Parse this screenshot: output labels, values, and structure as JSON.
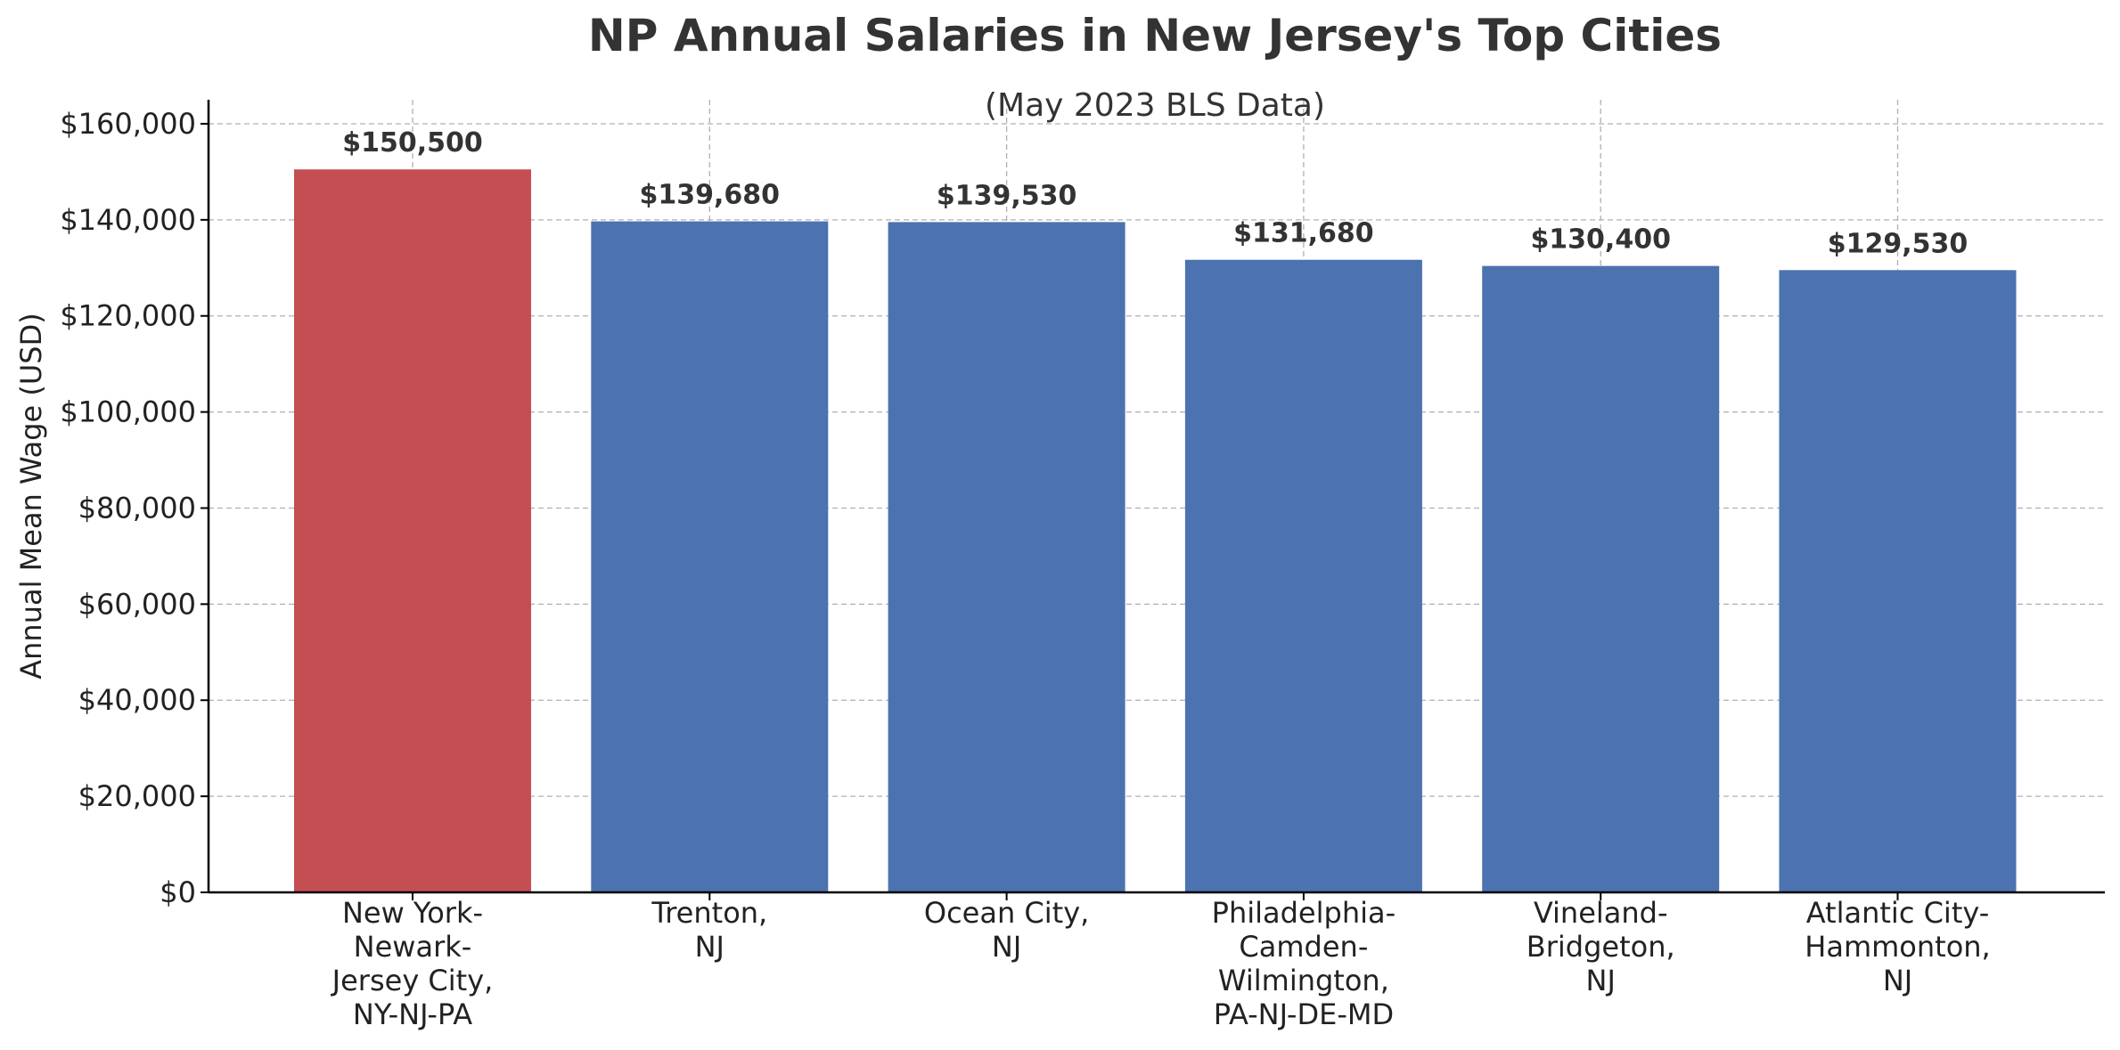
{
  "chart_data": {
    "type": "bar",
    "title": "NP Annual Salaries in New Jersey's Top Cities",
    "subtitle": "(May 2023 BLS Data)",
    "xlabel": "",
    "ylabel": "Annual Mean Wage (USD)",
    "ylim": [
      0,
      165000
    ],
    "yticks": [
      0,
      20000,
      40000,
      60000,
      80000,
      100000,
      120000,
      140000,
      160000
    ],
    "ytick_labels": [
      "$0",
      "$20,000",
      "$40,000",
      "$60,000",
      "$80,000",
      "$100,000",
      "$120,000",
      "$140,000",
      "$160,000"
    ],
    "grid": true,
    "categories": [
      "New York-Newark-Jersey City, NY-NJ-PA",
      "Trenton, NJ",
      "Ocean City, NJ",
      "Philadelphia-Camden-Wilmington, PA-NJ-DE-MD",
      "Vineland-Bridgeton, NJ",
      "Atlantic City-Hammonton, NJ"
    ],
    "category_lines": [
      [
        "New York-",
        "Newark-",
        "Jersey City,",
        "NY-NJ-PA"
      ],
      [
        "Trenton,",
        "NJ"
      ],
      [
        "Ocean City,",
        "NJ"
      ],
      [
        "Philadelphia-",
        "Camden-",
        "Wilmington,",
        "PA-NJ-DE-MD"
      ],
      [
        "Vineland-",
        "Bridgeton,",
        "NJ"
      ],
      [
        "Atlantic City-",
        "Hammonton,",
        "NJ"
      ]
    ],
    "values": [
      150500,
      139680,
      139530,
      131680,
      130400,
      129530
    ],
    "value_labels": [
      "$150,500",
      "$139,680",
      "$139,530",
      "$131,680",
      "$130,400",
      "$129,530"
    ],
    "colors": [
      "#c44e52",
      "#4c72b0",
      "#4c72b0",
      "#4c72b0",
      "#4c72b0",
      "#4c72b0"
    ]
  }
}
